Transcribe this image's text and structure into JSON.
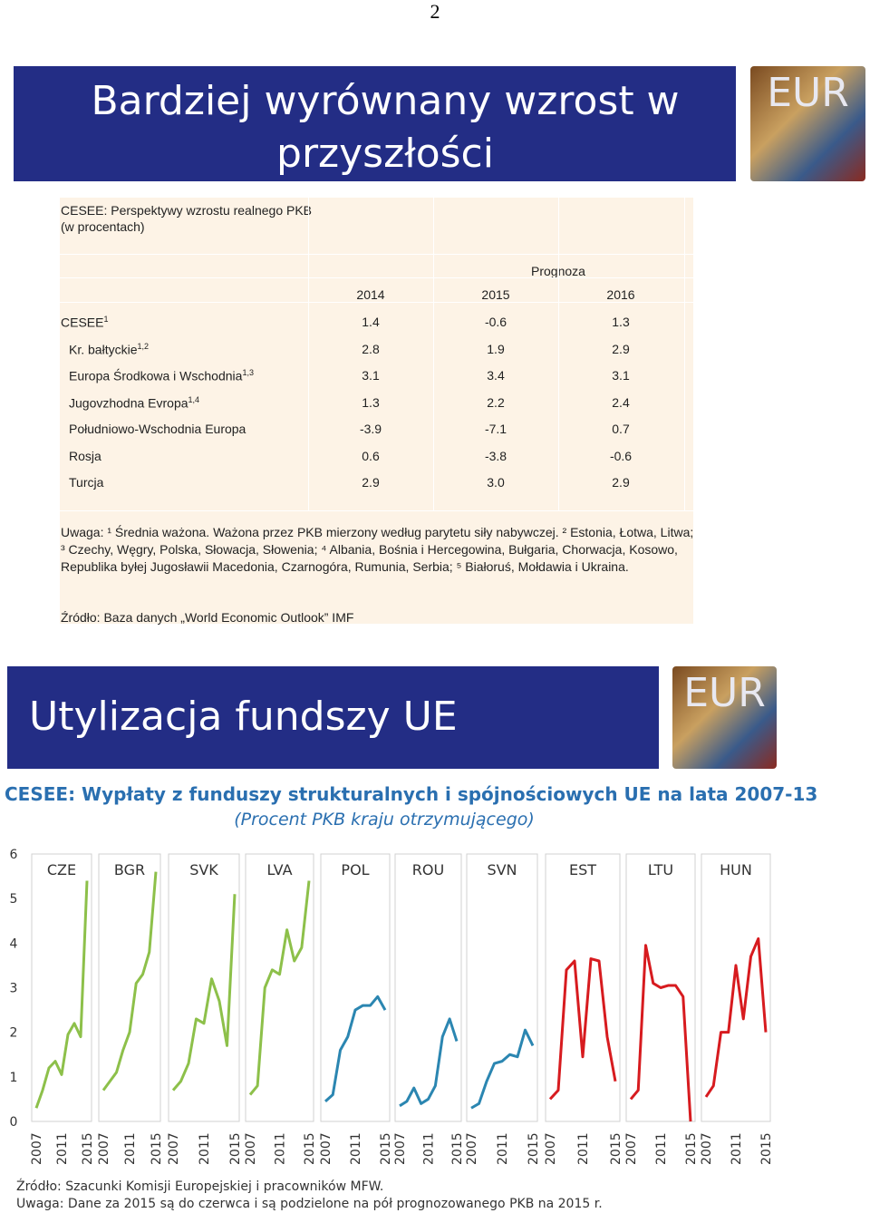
{
  "page_number": "2",
  "slide1": {
    "title": "Bardziej wyrównany wzrost w przyszłości",
    "logo": "EUR",
    "table": {
      "caption": [
        "CESEE: Perspektywy wzrostu realnego PKB",
        "(w procentach)"
      ],
      "forecast_header": "Prognoza",
      "years": [
        "2014",
        "2015",
        "2016"
      ],
      "rows": [
        {
          "label": "CESEE",
          "sup": "1",
          "indent": false,
          "cells": [
            "1.4",
            "-0.6",
            "1.3"
          ]
        },
        {
          "label": "Kr. bałtyckie",
          "sup": "1,2",
          "indent": true,
          "cells": [
            "2.8",
            "1.9",
            "2.9"
          ]
        },
        {
          "label": "Europa Środkowa i Wschodnia",
          "sup": "1,3",
          "indent": true,
          "cells": [
            "3.1",
            "3.4",
            "3.1"
          ]
        },
        {
          "label": "Jugovzhodna Evropa",
          "sup": "1,4",
          "indent": true,
          "cells": [
            "1.3",
            "2.2",
            "2.4"
          ]
        },
        {
          "label": "Południowo-Wschodnia Europa",
          "sup": null,
          "indent": true,
          "cells": [
            "-3.9",
            "-7.1",
            "0.7"
          ]
        },
        {
          "label": "Rosja",
          "sup": null,
          "indent": true,
          "cells": [
            "0.6",
            "-3.8",
            "-0.6"
          ]
        },
        {
          "label": "Turcja",
          "sup": null,
          "indent": true,
          "cells": [
            "2.9",
            "3.0",
            "2.9"
          ]
        }
      ],
      "note": "Uwaga: ¹ Średnia ważona. Ważona przez PKB mierzony według parytetu siły nabywczej. ² Estonia, Łotwa, Litwa; ³ Czechy, Węgry, Polska, Słowacja, Słowenia; ⁴ Albania, Bośnia i Hercegowina, Bułgaria, Chorwacja, Kosowo, Republika byłej Jugosławii Macedonia, Czarnogóra, Rumunia, Serbia; ⁵ Białoruś, Mołdawia i Ukraina.",
      "source": "Źródło: Baza danych „World Economic Outlook” IMF"
    }
  },
  "slide2": {
    "title": "Utylizacja fundszy UE",
    "logo": "EUR",
    "footnotes": [
      "Źródło: Szacunki Komisji Europejskiej i pracowników MFW.",
      "Uwaga: Dane za 2015 są do czerwca i są podzielone na pół prognozowanego PKB na 2015 r."
    ]
  },
  "chart_data": {
    "type": "line",
    "title": "CESEE: Wypłaty z funduszy strukturalnych i spójnościowych UE na lata 2007-13",
    "subtitle": "(Procent PKB kraju otrzymującego)",
    "x": [
      2007,
      2008,
      2009,
      2010,
      2011,
      2012,
      2013,
      2014,
      2015
    ],
    "xlim": [
      2007,
      2015
    ],
    "xticks": [
      2007,
      2011,
      2015
    ],
    "ylim": [
      0,
      6
    ],
    "yticks": [
      0,
      1,
      2,
      3,
      4,
      5,
      6
    ],
    "series": [
      {
        "name": "CZE",
        "color": "#8dc04a",
        "values": [
          0.3,
          0.7,
          1.2,
          1.35,
          1.05,
          1.95,
          2.2,
          1.9,
          5.4
        ]
      },
      {
        "name": "BGR",
        "color": "#8dc04a",
        "values": [
          0.7,
          0.9,
          1.1,
          1.6,
          2.0,
          3.1,
          3.3,
          3.8,
          5.6
        ]
      },
      {
        "name": "SVK",
        "color": "#8dc04a",
        "values": [
          0.7,
          0.9,
          1.3,
          2.3,
          2.2,
          3.2,
          2.7,
          1.7,
          5.1
        ]
      },
      {
        "name": "LVA",
        "color": "#8dc04a",
        "values": [
          0.6,
          0.8,
          3.0,
          3.4,
          3.3,
          4.3,
          3.6,
          3.9,
          5.4
        ]
      },
      {
        "name": "POL",
        "color": "#2b86b1",
        "values": [
          0.45,
          0.6,
          1.6,
          1.9,
          2.5,
          2.6,
          2.6,
          2.8,
          2.5
        ]
      },
      {
        "name": "ROU",
        "color": "#2b86b1",
        "values": [
          0.35,
          0.45,
          0.75,
          0.4,
          0.5,
          0.8,
          1.9,
          2.3,
          1.8
        ]
      },
      {
        "name": "SVN",
        "color": "#2b86b1",
        "values": [
          0.3,
          0.4,
          0.9,
          1.3,
          1.35,
          1.5,
          1.45,
          2.05,
          1.7
        ]
      },
      {
        "name": "EST",
        "color": "#d71b1f",
        "values": [
          0.5,
          0.7,
          3.4,
          3.6,
          1.45,
          3.65,
          3.6,
          1.9,
          0.9
        ]
      },
      {
        "name": "LTU",
        "color": "#d71b1f",
        "values": [
          0.5,
          0.7,
          3.95,
          3.1,
          3.0,
          3.05,
          3.05,
          2.8,
          0
        ]
      },
      {
        "name": "HUN",
        "color": "#d71b1f",
        "values": [
          0.55,
          0.8,
          2.0,
          2.0,
          3.5,
          2.3,
          3.7,
          4.1,
          2.0
        ]
      }
    ]
  }
}
